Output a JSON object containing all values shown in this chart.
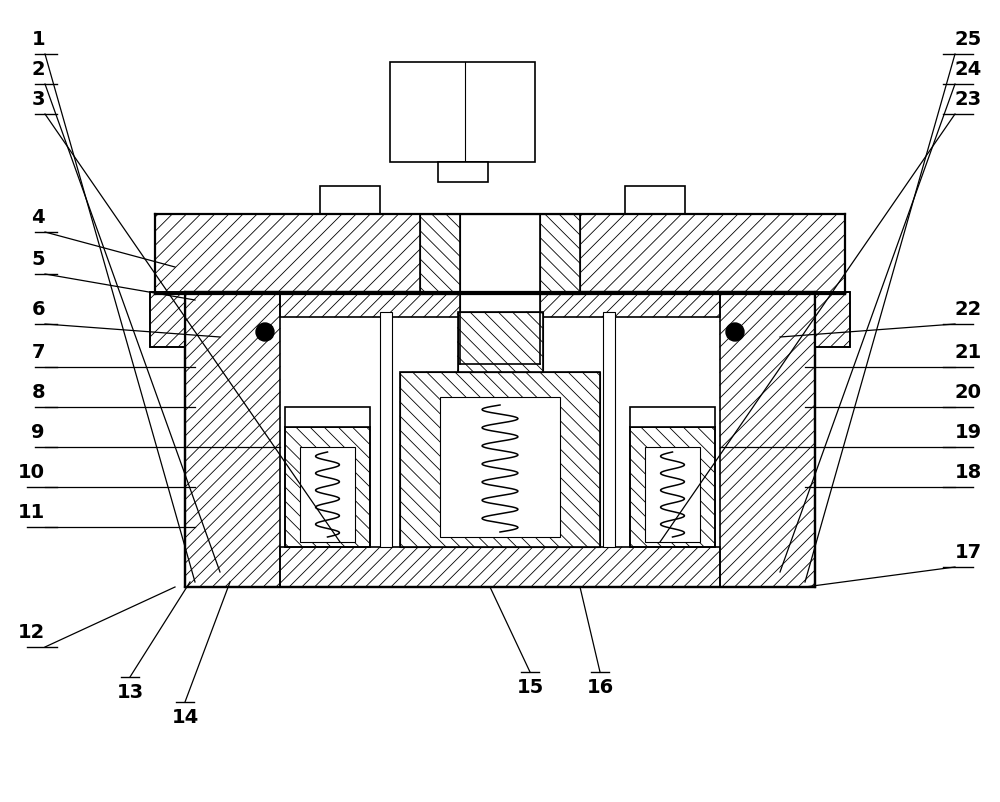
{
  "bg_color": "#ffffff",
  "lc": "#000000",
  "figsize": [
    10.0,
    8.02
  ],
  "dpi": 100,
  "left_labels": [
    [
      "1",
      45,
      748,
      195,
      220
    ],
    [
      "2",
      45,
      718,
      220,
      230
    ],
    [
      "3",
      45,
      688,
      340,
      260
    ],
    [
      "4",
      45,
      570,
      175,
      535
    ],
    [
      "5",
      45,
      528,
      195,
      502
    ],
    [
      "6",
      45,
      478,
      220,
      465
    ],
    [
      "7",
      45,
      435,
      195,
      435
    ],
    [
      "8",
      45,
      395,
      195,
      395
    ],
    [
      "9",
      45,
      355,
      280,
      355
    ],
    [
      "10",
      45,
      315,
      195,
      315
    ],
    [
      "11",
      45,
      275,
      195,
      275
    ],
    [
      "12",
      45,
      155,
      175,
      215
    ]
  ],
  "right_labels": [
    [
      "25",
      955,
      748,
      805,
      220
    ],
    [
      "24",
      955,
      718,
      780,
      230
    ],
    [
      "23",
      955,
      688,
      660,
      260
    ],
    [
      "22",
      955,
      478,
      780,
      465
    ],
    [
      "21",
      955,
      435,
      805,
      435
    ],
    [
      "20",
      955,
      395,
      805,
      395
    ],
    [
      "19",
      955,
      355,
      720,
      355
    ],
    [
      "18",
      955,
      315,
      805,
      315
    ],
    [
      "17",
      955,
      235,
      805,
      215
    ]
  ],
  "bottom_labels": [
    [
      "13",
      130,
      125,
      190,
      220
    ],
    [
      "14",
      185,
      100,
      230,
      220
    ],
    [
      "15",
      530,
      130,
      490,
      215
    ],
    [
      "16",
      600,
      130,
      580,
      215
    ]
  ]
}
